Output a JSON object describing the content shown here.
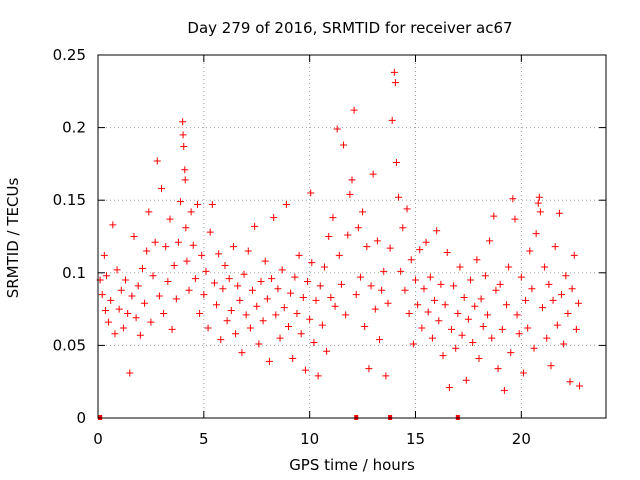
{
  "chart_data": {
    "type": "scatter",
    "title": "Day 279 of 2016, SRMTID for receiver ac67",
    "xlabel": "GPS time / hours",
    "ylabel": "SRMTID / TECUs",
    "xlim": [
      0,
      24
    ],
    "ylim": [
      0,
      0.25
    ],
    "xticks": [
      0,
      5,
      10,
      15,
      20
    ],
    "xtick_labels": [
      "0",
      "5",
      "10",
      "15",
      "20"
    ],
    "yticks": [
      0,
      0.05,
      0.1,
      0.15,
      0.2,
      0.25
    ],
    "ytick_labels": [
      "0",
      "0.05",
      "0.1",
      "0.15",
      "0.2",
      "0.25"
    ],
    "grid": true,
    "marker": "+",
    "color": "#ff0000",
    "series": [
      {
        "name": "SRMTID",
        "points": [
          [
            0.1,
            0.095
          ],
          [
            0.2,
            0.085
          ],
          [
            0.3,
            0.112
          ],
          [
            0.35,
            0.074
          ],
          [
            0.4,
            0.098
          ],
          [
            0.5,
            0.066
          ],
          [
            0.6,
            0.081
          ],
          [
            0.7,
            0.133
          ],
          [
            0.8,
            0.058
          ],
          [
            0.9,
            0.102
          ],
          [
            1.0,
            0.075
          ],
          [
            1.1,
            0.088
          ],
          [
            1.2,
            0.062
          ],
          [
            1.3,
            0.095
          ],
          [
            1.4,
            0.072
          ],
          [
            1.5,
            0.031
          ],
          [
            1.6,
            0.084
          ],
          [
            1.7,
            0.125
          ],
          [
            1.8,
            0.069
          ],
          [
            1.9,
            0.091
          ],
          [
            2.0,
            0.057
          ],
          [
            2.1,
            0.103
          ],
          [
            2.2,
            0.079
          ],
          [
            2.3,
            0.115
          ],
          [
            2.4,
            0.142
          ],
          [
            2.5,
            0.066
          ],
          [
            2.6,
            0.098
          ],
          [
            2.7,
            0.121
          ],
          [
            2.8,
            0.177
          ],
          [
            2.9,
            0.084
          ],
          [
            3.0,
            0.158
          ],
          [
            3.1,
            0.072
          ],
          [
            3.2,
            0.118
          ],
          [
            3.3,
            0.094
          ],
          [
            3.4,
            0.137
          ],
          [
            3.5,
            0.061
          ],
          [
            3.6,
            0.105
          ],
          [
            3.7,
            0.082
          ],
          [
            3.8,
            0.121
          ],
          [
            3.9,
            0.149
          ],
          [
            4.0,
            0.204
          ],
          [
            4.02,
            0.195
          ],
          [
            4.05,
            0.187
          ],
          [
            4.1,
            0.171
          ],
          [
            4.12,
            0.164
          ],
          [
            4.15,
            0.131
          ],
          [
            4.2,
            0.108
          ],
          [
            4.3,
            0.088
          ],
          [
            4.4,
            0.142
          ],
          [
            4.5,
            0.119
          ],
          [
            4.6,
            0.096
          ],
          [
            4.7,
            0.147
          ],
          [
            4.8,
            0.072
          ],
          [
            4.9,
            0.112
          ],
          [
            5.0,
            0.085
          ],
          [
            5.1,
            0.101
          ],
          [
            5.2,
            0.062
          ],
          [
            5.3,
            0.128
          ],
          [
            5.4,
            0.147
          ],
          [
            5.5,
            0.093
          ],
          [
            5.6,
            0.078
          ],
          [
            5.7,
            0.113
          ],
          [
            5.8,
            0.054
          ],
          [
            5.9,
            0.089
          ],
          [
            6.0,
            0.105
          ],
          [
            6.1,
            0.067
          ],
          [
            6.2,
            0.096
          ],
          [
            6.3,
            0.074
          ],
          [
            6.4,
            0.118
          ],
          [
            6.5,
            0.058
          ],
          [
            6.6,
            0.091
          ],
          [
            6.7,
            0.081
          ],
          [
            6.8,
            0.045
          ],
          [
            6.9,
            0.099
          ],
          [
            7.0,
            0.071
          ],
          [
            7.1,
            0.115
          ],
          [
            7.2,
            0.062
          ],
          [
            7.3,
            0.088
          ],
          [
            7.4,
            0.132
          ],
          [
            7.5,
            0.077
          ],
          [
            7.6,
            0.051
          ],
          [
            7.7,
            0.094
          ],
          [
            7.8,
            0.067
          ],
          [
            7.9,
            0.108
          ],
          [
            8.0,
            0.082
          ],
          [
            8.1,
            0.039
          ],
          [
            8.2,
            0.096
          ],
          [
            8.3,
            0.138
          ],
          [
            8.4,
            0.071
          ],
          [
            8.5,
            0.089
          ],
          [
            8.6,
            0.055
          ],
          [
            8.7,
            0.102
          ],
          [
            8.8,
            0.076
          ],
          [
            8.9,
            0.147
          ],
          [
            9.0,
            0.063
          ],
          [
            9.1,
            0.086
          ],
          [
            9.2,
            0.041
          ],
          [
            9.3,
            0.097
          ],
          [
            9.4,
            0.072
          ],
          [
            9.5,
            0.112
          ],
          [
            9.6,
            0.058
          ],
          [
            9.7,
            0.083
          ],
          [
            9.8,
            0.033
          ],
          [
            9.9,
            0.094
          ],
          [
            10.0,
            0.068
          ],
          [
            10.05,
            0.155
          ],
          [
            10.1,
            0.107
          ],
          [
            10.2,
            0.052
          ],
          [
            10.3,
            0.081
          ],
          [
            10.4,
            0.029
          ],
          [
            10.5,
            0.091
          ],
          [
            10.6,
            0.064
          ],
          [
            10.7,
            0.104
          ],
          [
            10.8,
            0.046
          ],
          [
            10.9,
            0.125
          ],
          [
            11.0,
            0.083
          ],
          [
            11.1,
            0.138
          ],
          [
            11.2,
            0.077
          ],
          [
            11.3,
            0.199
          ],
          [
            11.4,
            0.112
          ],
          [
            11.5,
            0.092
          ],
          [
            11.6,
            0.188
          ],
          [
            11.7,
            0.071
          ],
          [
            11.8,
            0.126
          ],
          [
            11.9,
            0.154
          ],
          [
            12.0,
            0.164
          ],
          [
            12.1,
            0.212
          ],
          [
            12.2,
            0.085
          ],
          [
            12.3,
            0.131
          ],
          [
            12.4,
            0.097
          ],
          [
            12.5,
            0.142
          ],
          [
            12.6,
            0.063
          ],
          [
            12.7,
            0.118
          ],
          [
            12.8,
            0.034
          ],
          [
            12.9,
            0.091
          ],
          [
            13.0,
            0.168
          ],
          [
            13.1,
            0.075
          ],
          [
            13.2,
            0.122
          ],
          [
            13.3,
            0.054
          ],
          [
            13.4,
            0.088
          ],
          [
            13.5,
            0.101
          ],
          [
            13.6,
            0.029
          ],
          [
            13.7,
            0.079
          ],
          [
            13.8,
            0.117
          ],
          [
            13.9,
            0.205
          ],
          [
            14.0,
            0.238
          ],
          [
            14.05,
            0.231
          ],
          [
            14.1,
            0.176
          ],
          [
            14.2,
            0.152
          ],
          [
            14.3,
            0.101
          ],
          [
            14.4,
            0.131
          ],
          [
            14.5,
            0.088
          ],
          [
            14.6,
            0.144
          ],
          [
            14.7,
            0.072
          ],
          [
            14.8,
            0.109
          ],
          [
            14.9,
            0.051
          ],
          [
            15.0,
            0.095
          ],
          [
            15.1,
            0.078
          ],
          [
            15.2,
            0.116
          ],
          [
            15.3,
            0.062
          ],
          [
            15.4,
            0.089
          ],
          [
            15.5,
            0.121
          ],
          [
            15.6,
            0.073
          ],
          [
            15.7,
            0.097
          ],
          [
            15.8,
            0.055
          ],
          [
            15.9,
            0.081
          ],
          [
            16.0,
            0.129
          ],
          [
            16.1,
            0.067
          ],
          [
            16.2,
            0.092
          ],
          [
            16.3,
            0.043
          ],
          [
            16.4,
            0.078
          ],
          [
            16.5,
            0.114
          ],
          [
            16.6,
            0.021
          ],
          [
            16.7,
            0.061
          ],
          [
            16.8,
            0.091
          ],
          [
            16.9,
            0.048
          ],
          [
            17.0,
            0.072
          ],
          [
            17.1,
            0.104
          ],
          [
            17.2,
            0.057
          ],
          [
            17.3,
            0.083
          ],
          [
            17.4,
            0.026
          ],
          [
            17.5,
            0.068
          ],
          [
            17.6,
            0.095
          ],
          [
            17.7,
            0.052
          ],
          [
            17.8,
            0.077
          ],
          [
            17.9,
            0.109
          ],
          [
            18.0,
            0.041
          ],
          [
            18.1,
            0.082
          ],
          [
            18.2,
            0.063
          ],
          [
            18.3,
            0.098
          ],
          [
            18.4,
            0.071
          ],
          [
            18.5,
            0.122
          ],
          [
            18.6,
            0.055
          ],
          [
            18.7,
            0.139
          ],
          [
            18.8,
            0.088
          ],
          [
            18.9,
            0.034
          ],
          [
            19.0,
            0.092
          ],
          [
            19.1,
            0.061
          ],
          [
            19.2,
            0.019
          ],
          [
            19.3,
            0.078
          ],
          [
            19.4,
            0.104
          ],
          [
            19.5,
            0.045
          ],
          [
            19.6,
            0.151
          ],
          [
            19.7,
            0.137
          ],
          [
            19.8,
            0.071
          ],
          [
            19.9,
            0.058
          ],
          [
            20.0,
            0.097
          ],
          [
            20.1,
            0.031
          ],
          [
            20.2,
            0.081
          ],
          [
            20.3,
            0.062
          ],
          [
            20.4,
            0.115
          ],
          [
            20.5,
            0.089
          ],
          [
            20.6,
            0.048
          ],
          [
            20.7,
            0.127
          ],
          [
            20.8,
            0.148
          ],
          [
            20.85,
            0.152
          ],
          [
            20.9,
            0.142
          ],
          [
            21.0,
            0.076
          ],
          [
            21.1,
            0.104
          ],
          [
            21.2,
            0.055
          ],
          [
            21.3,
            0.092
          ],
          [
            21.4,
            0.036
          ],
          [
            21.5,
            0.081
          ],
          [
            21.6,
            0.118
          ],
          [
            21.7,
            0.064
          ],
          [
            21.8,
            0.141
          ],
          [
            21.9,
            0.085
          ],
          [
            22.0,
            0.051
          ],
          [
            22.1,
            0.098
          ],
          [
            22.2,
            0.072
          ],
          [
            22.3,
            0.025
          ],
          [
            22.4,
            0.089
          ],
          [
            22.5,
            0.112
          ],
          [
            22.6,
            0.061
          ],
          [
            22.7,
            0.079
          ],
          [
            22.75,
            0.022
          ]
        ]
      }
    ],
    "gap_markers_x": [
      0.1,
      12.2,
      13.8,
      17.0
    ]
  }
}
